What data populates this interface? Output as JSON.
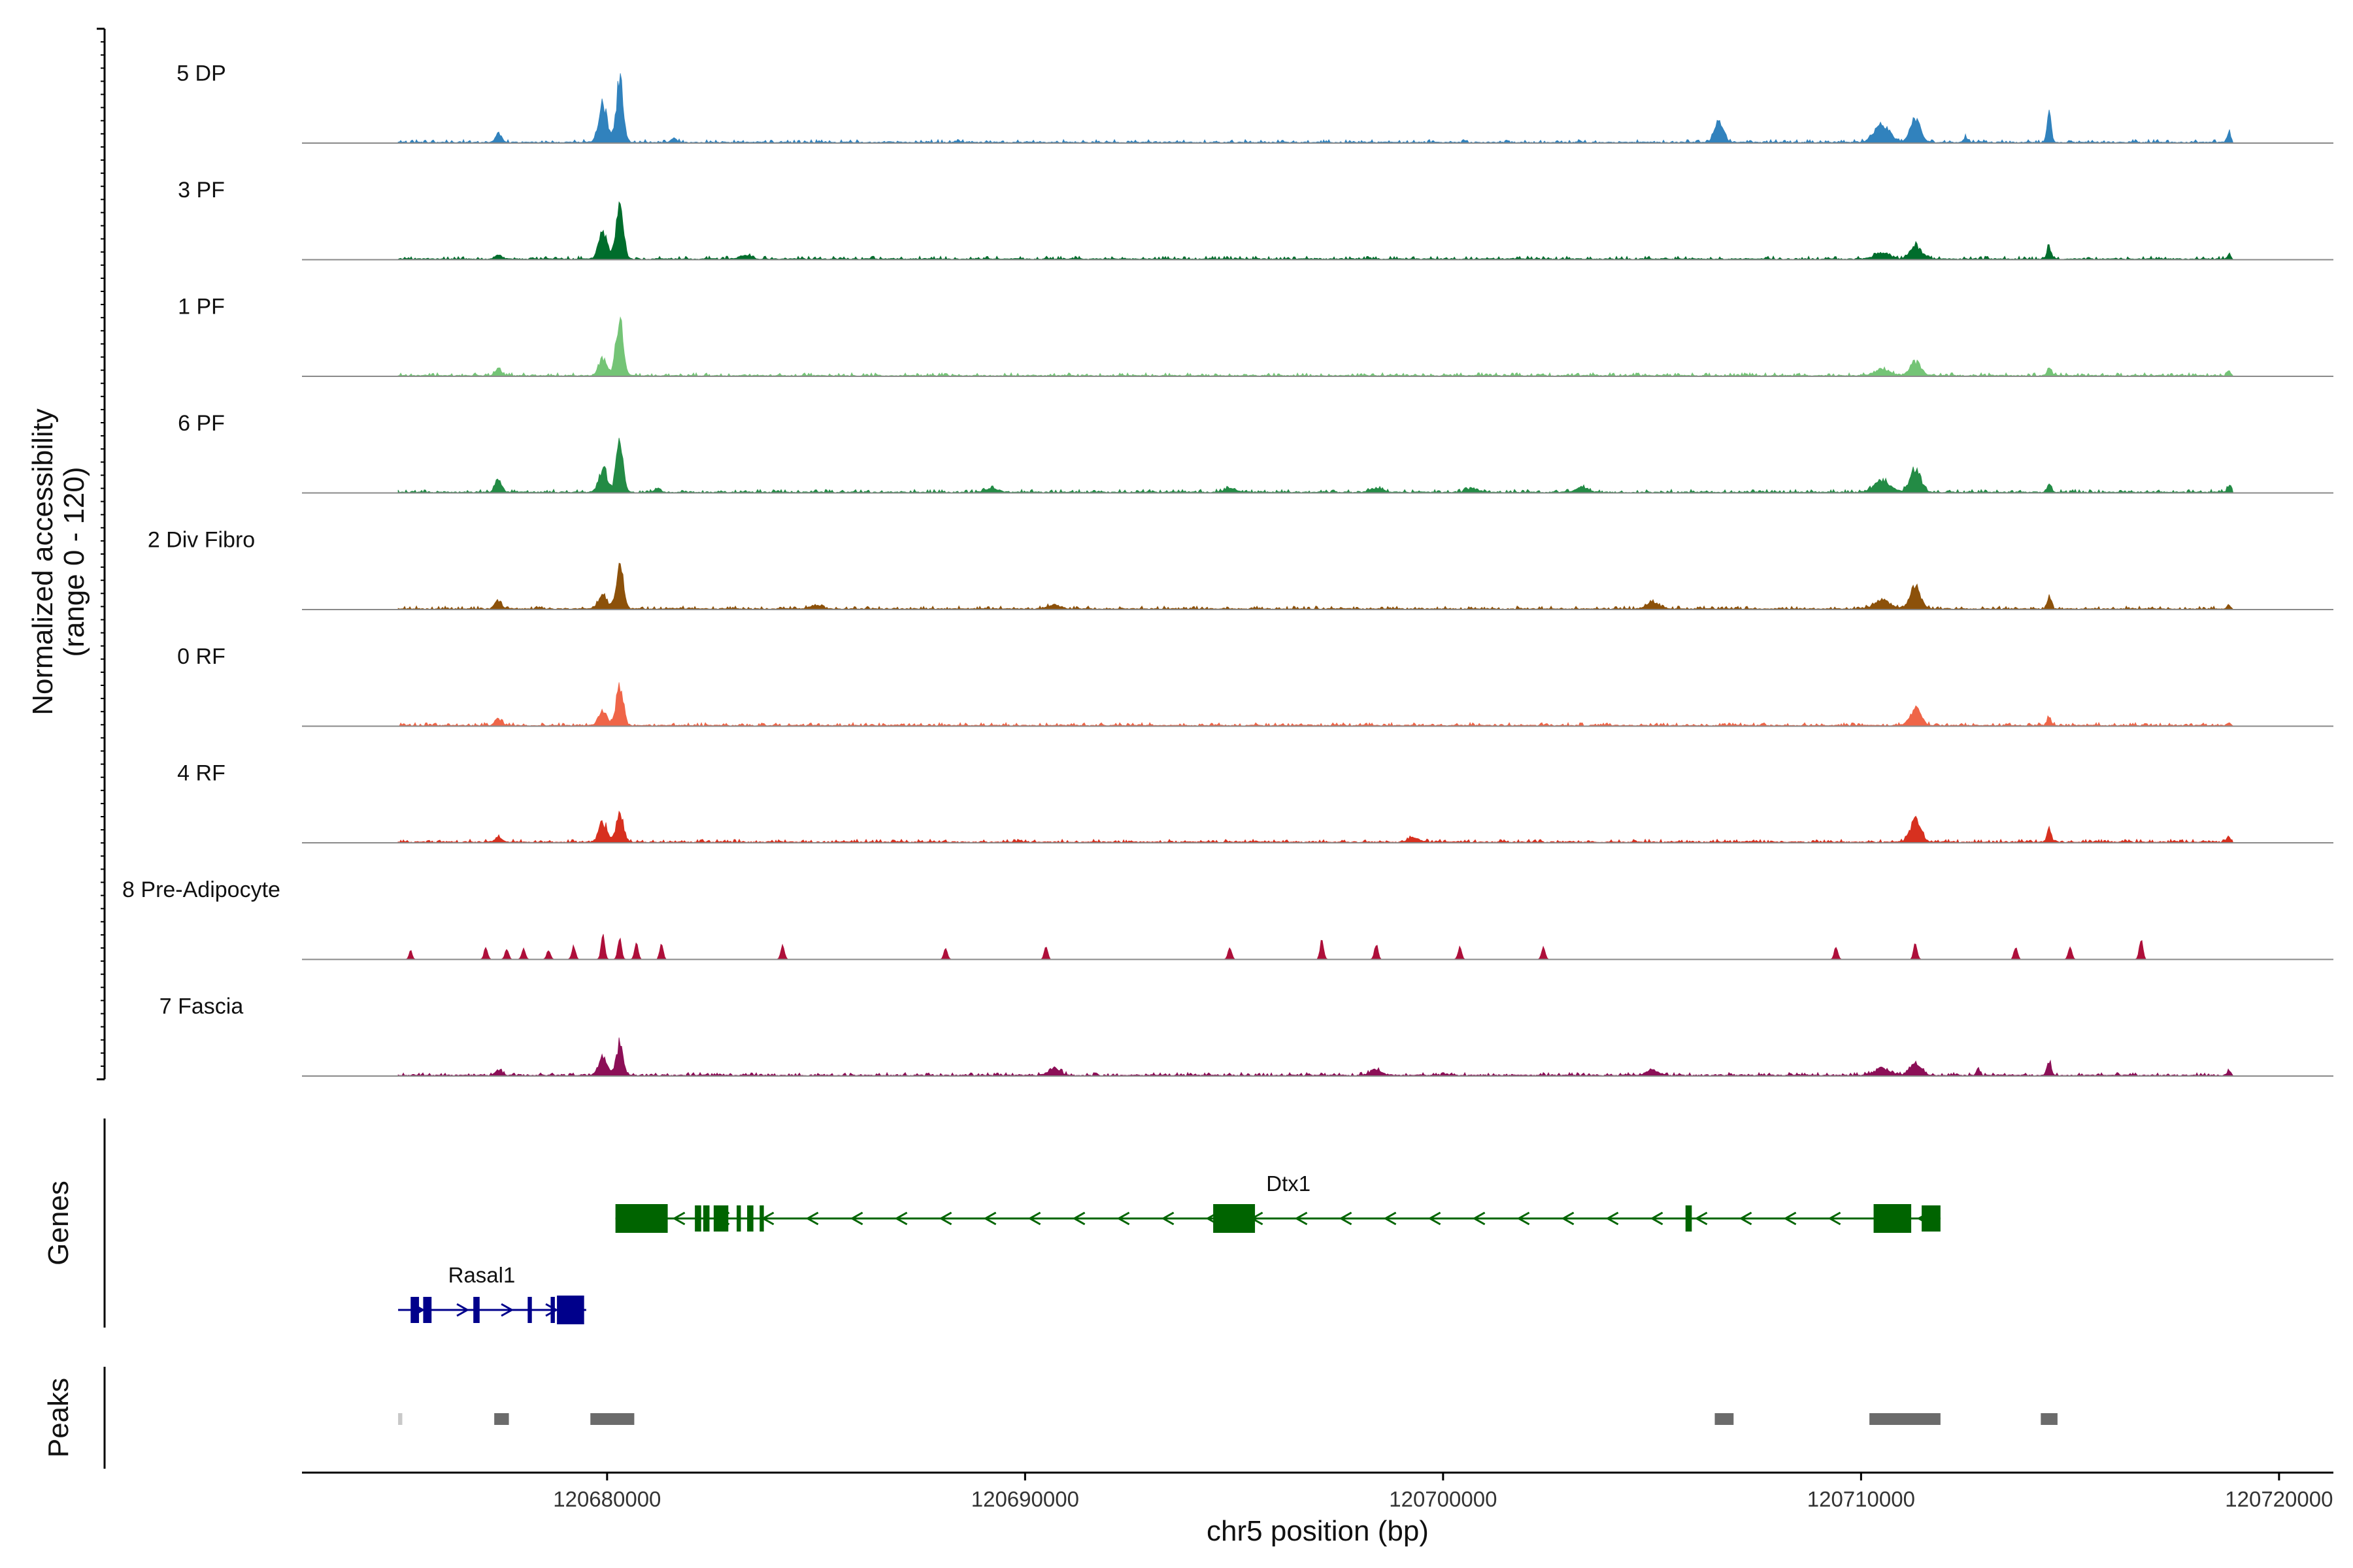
{
  "chart_data": {
    "type": "area",
    "title": "",
    "ylabel": [
      "Normalized accessibility",
      "(range 0 - 120)"
    ],
    "ylim": [
      0,
      120
    ],
    "xlabel": "chr5 position (bp)",
    "chromosome": "chr5",
    "xlim": [
      120672700,
      120721300
    ],
    "xticks": [
      120680000,
      120690000,
      120700000,
      120710000,
      120720000
    ],
    "xtick_labels": [
      "120680000",
      "120690000",
      "120700000",
      "120710000",
      "120720000"
    ],
    "tracks": [
      {
        "name": "5 DP",
        "color": "#3182bd",
        "peaks": [
          [
            120674900,
            5,
            0
          ],
          [
            120677400,
            12,
            110
          ],
          [
            120679900,
            58,
            140
          ],
          [
            120680300,
            88,
            120
          ],
          [
            120681600,
            6,
            90
          ],
          [
            120688400,
            4,
            60
          ],
          [
            120706600,
            30,
            150
          ],
          [
            120710500,
            26,
            260
          ],
          [
            120711300,
            32,
            180
          ],
          [
            120712500,
            9,
            60
          ],
          [
            120714500,
            40,
            70
          ],
          [
            120718800,
            15,
            60
          ]
        ]
      },
      {
        "name": "3 PF",
        "color": "#006d2c",
        "peaks": [
          [
            120674900,
            5,
            0
          ],
          [
            120677400,
            6,
            110
          ],
          [
            120679900,
            40,
            140
          ],
          [
            120680300,
            82,
            120
          ],
          [
            120683300,
            5,
            200
          ],
          [
            120711300,
            20,
            180
          ],
          [
            120710500,
            9,
            260
          ],
          [
            120714500,
            18,
            70
          ],
          [
            120718800,
            6,
            60
          ]
        ]
      },
      {
        "name": "1 PF",
        "color": "#74c476",
        "peaks": [
          [
            120674900,
            4,
            0
          ],
          [
            120677400,
            10,
            110
          ],
          [
            120679900,
            25,
            140
          ],
          [
            120680300,
            82,
            120
          ],
          [
            120710500,
            9,
            260
          ],
          [
            120711300,
            20,
            180
          ],
          [
            120714500,
            13,
            70
          ],
          [
            120718800,
            7,
            60
          ]
        ]
      },
      {
        "name": "6 PF",
        "color": "#238b45",
        "peaks": [
          [
            120674900,
            5,
            0
          ],
          [
            120677400,
            20,
            110
          ],
          [
            120679900,
            35,
            140
          ],
          [
            120680300,
            70,
            120
          ],
          [
            120681200,
            7,
            90
          ],
          [
            120689200,
            6,
            200
          ],
          [
            120694900,
            6,
            200
          ],
          [
            120698400,
            6,
            200
          ],
          [
            120700700,
            6,
            200
          ],
          [
            120703300,
            7,
            200
          ],
          [
            120710500,
            18,
            260
          ],
          [
            120711300,
            35,
            180
          ],
          [
            120714500,
            12,
            70
          ],
          [
            120718800,
            10,
            60
          ]
        ]
      },
      {
        "name": "2 Div Fibro",
        "color": "#8c510a",
        "peaks": [
          [
            120674900,
            6,
            0
          ],
          [
            120677400,
            12,
            110
          ],
          [
            120679900,
            22,
            140
          ],
          [
            120680300,
            65,
            120
          ],
          [
            120685000,
            5,
            200
          ],
          [
            120690700,
            6,
            200
          ],
          [
            120705000,
            9,
            200
          ],
          [
            120710500,
            14,
            260
          ],
          [
            120711300,
            32,
            180
          ],
          [
            120714500,
            18,
            70
          ],
          [
            120718800,
            6,
            60
          ]
        ]
      },
      {
        "name": "0 RF",
        "color": "#ef6548",
        "peaks": [
          [
            120674900,
            4,
            0
          ],
          [
            120677400,
            10,
            110
          ],
          [
            120679900,
            20,
            140
          ],
          [
            120680300,
            58,
            120
          ],
          [
            120711300,
            25,
            180
          ],
          [
            120714500,
            12,
            70
          ],
          [
            120718800,
            4,
            60
          ]
        ]
      },
      {
        "name": "4 RF",
        "color": "#d7301f",
        "peaks": [
          [
            120674900,
            4,
            0
          ],
          [
            120677400,
            7,
            110
          ],
          [
            120679900,
            28,
            140
          ],
          [
            120680300,
            40,
            120
          ],
          [
            120699300,
            6,
            200
          ],
          [
            120711300,
            32,
            180
          ],
          [
            120714500,
            18,
            70
          ],
          [
            120718800,
            6,
            60
          ]
        ]
      },
      {
        "name": "8 Pre-Adipocyte",
        "color": "#ae0f3a",
        "sparse": true,
        "peaks": [
          [
            120675300,
            12,
            50
          ],
          [
            120677100,
            16,
            60
          ],
          [
            120677600,
            14,
            60
          ],
          [
            120678000,
            14,
            60
          ],
          [
            120678600,
            12,
            60
          ],
          [
            120679200,
            18,
            60
          ],
          [
            120679900,
            32,
            60
          ],
          [
            120680300,
            30,
            60
          ],
          [
            120680700,
            22,
            60
          ],
          [
            120681300,
            20,
            60
          ],
          [
            120684200,
            20,
            60
          ],
          [
            120688100,
            14,
            60
          ],
          [
            120690500,
            16,
            60
          ],
          [
            120694900,
            16,
            60
          ],
          [
            120697100,
            26,
            60
          ],
          [
            120698400,
            20,
            60
          ],
          [
            120700400,
            16,
            60
          ],
          [
            120702400,
            16,
            60
          ],
          [
            120709400,
            16,
            60
          ],
          [
            120711300,
            22,
            60
          ],
          [
            120713700,
            16,
            60
          ],
          [
            120715000,
            16,
            60
          ],
          [
            120716700,
            26,
            60
          ]
        ]
      },
      {
        "name": "7 Fascia",
        "color": "#8c0f57",
        "peaks": [
          [
            120674900,
            8,
            0
          ],
          [
            120677400,
            8,
            110
          ],
          [
            120679900,
            26,
            140
          ],
          [
            120680300,
            45,
            120
          ],
          [
            120690700,
            10,
            200
          ],
          [
            120698400,
            8,
            200
          ],
          [
            120705000,
            8,
            200
          ],
          [
            120710500,
            10,
            260
          ],
          [
            120711300,
            18,
            180
          ],
          [
            120712800,
            10,
            60
          ],
          [
            120714500,
            22,
            70
          ],
          [
            120718800,
            7,
            60
          ]
        ]
      }
    ],
    "genes": [
      {
        "name": "Dtx1",
        "strand": "-",
        "color": "#006400",
        "start": 120680200,
        "end": 120711900,
        "exons": [
          [
            120680200,
            120681450
          ],
          [
            120682100,
            120682250
          ],
          [
            120682300,
            120682450
          ],
          [
            120682550,
            120682900
          ],
          [
            120683100,
            120683200
          ],
          [
            120683350,
            120683500
          ],
          [
            120683650,
            120683750
          ],
          [
            120694500,
            120695500
          ],
          [
            120705800,
            120705950
          ],
          [
            120710300,
            120711200
          ],
          [
            120711450,
            120711900
          ]
        ]
      },
      {
        "name": "Rasal1",
        "strand": "+",
        "color": "#00008b",
        "start": 120675000,
        "end": 120679500,
        "exons": [
          [
            120675300,
            120675500
          ],
          [
            120675600,
            120675800
          ],
          [
            120676800,
            120676950
          ],
          [
            120678100,
            120678200
          ],
          [
            120678650,
            120678750
          ],
          [
            120678800,
            120679450
          ]
        ]
      }
    ],
    "peaks_track": {
      "label": "Peaks",
      "color": "#6b6b6b",
      "regions": [
        [
          120675000,
          120675100
        ],
        [
          120677300,
          120677650
        ],
        [
          120679600,
          120680650
        ],
        [
          120706500,
          120706950
        ],
        [
          120710200,
          120711900
        ],
        [
          120714300,
          120714700
        ]
      ]
    },
    "genes_track_label": "Genes"
  }
}
